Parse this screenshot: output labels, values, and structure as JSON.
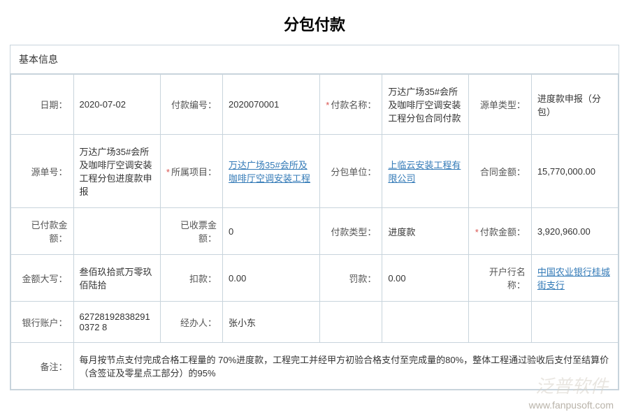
{
  "title": "分包付款",
  "section_header": "基本信息",
  "colors": {
    "border": "#c8d4dc",
    "link": "#337ab7",
    "required": "#d9534f",
    "text": "#333333",
    "label": "#555555",
    "bg": "#ffffff"
  },
  "fields": {
    "date_label": "日期：",
    "date_value": "2020-07-02",
    "payment_no_label": "付款编号：",
    "payment_no_value": "2020070001",
    "payment_name_label": "付款名称：",
    "payment_name_value": "万达广场35#会所及咖啡厅空调安装工程分包合同付款",
    "source_type_label": "源单类型：",
    "source_type_value": "进度款申报（分包）",
    "source_no_label": "源单号：",
    "source_no_value": "万达广场35#会所及咖啡厅空调安装工程分包进度款申报",
    "project_label": "所属项目：",
    "project_value": "万达广场35#会所及咖啡厅空调安装工程",
    "sub_unit_label": "分包单位：",
    "sub_unit_value": "上临云安装工程有限公司",
    "contract_amount_label": "合同金额：",
    "contract_amount_value": "15,770,000.00",
    "paid_amount_label": "已付款金额：",
    "paid_amount_value": "",
    "received_invoice_label": "已收票金额：",
    "received_invoice_value": "0",
    "payment_type_label": "付款类型：",
    "payment_type_value": "进度款",
    "payment_amount_label": "付款金额：",
    "payment_amount_value": "3,920,960.00",
    "amount_cn_label": "金额大写：",
    "amount_cn_value": "叁佰玖拾贰万零玖佰陆拾",
    "deduction_label": "扣款：",
    "deduction_value": "0.00",
    "penalty_label": "罚款：",
    "penalty_value": "0.00",
    "bank_name_label": "开户行名称：",
    "bank_name_value": "中国农业银行桂城街支行",
    "bank_account_label": "银行账户：",
    "bank_account_value": "627281928382910372 8",
    "handler_label": "经办人：",
    "handler_value": "张小东",
    "remark_label": "备注：",
    "remark_value": "每月按节点支付完成合格工程量的 70%进度款，工程完工并经甲方初验合格支付至完成量的80%，整体工程通过验收后支付至结算价（含签证及零星点工部分）的95%"
  },
  "watermark": {
    "brand": "泛普软件",
    "url": "www.fanpusoft.com"
  }
}
